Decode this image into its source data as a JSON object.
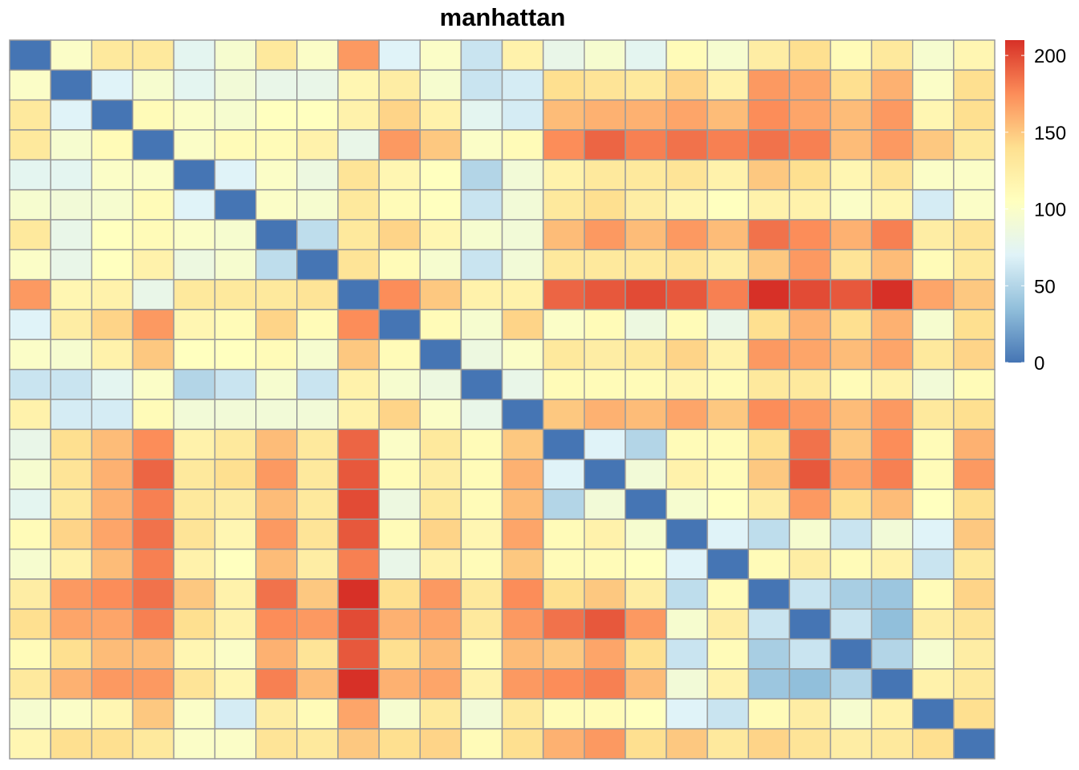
{
  "chart_data": {
    "type": "heatmap",
    "title": "manhattan",
    "rows": 24,
    "cols": 24,
    "color_scale": {
      "min": 0,
      "max": 210,
      "palette": "RdYlBu (reversed)",
      "colors": [
        "#4575b4",
        "#91bfdb",
        "#e0f3f8",
        "#ffffbf",
        "#fee090",
        "#fc8d59",
        "#d73027"
      ]
    },
    "legend": {
      "placement": "right",
      "ticks": [
        "0",
        "50",
        "100",
        "150",
        "200"
      ]
    },
    "matrix": [
      [
        0,
        100,
        130,
        130,
        75,
        95,
        130,
        100,
        170,
        70,
        100,
        60,
        120,
        80,
        95,
        75,
        110,
        95,
        125,
        140,
        110,
        130,
        95,
        115
      ],
      [
        100,
        0,
        70,
        95,
        75,
        90,
        80,
        80,
        115,
        125,
        95,
        60,
        65,
        140,
        135,
        130,
        145,
        120,
        170,
        165,
        140,
        160,
        100,
        140
      ],
      [
        130,
        70,
        0,
        110,
        100,
        95,
        105,
        105,
        120,
        145,
        120,
        75,
        65,
        155,
        160,
        160,
        165,
        155,
        175,
        165,
        155,
        170,
        115,
        140
      ],
      [
        130,
        95,
        110,
        0,
        100,
        110,
        110,
        120,
        80,
        170,
        150,
        100,
        110,
        175,
        190,
        180,
        185,
        180,
        185,
        180,
        155,
        170,
        150,
        130
      ],
      [
        75,
        75,
        100,
        100,
        0,
        70,
        100,
        85,
        135,
        115,
        105,
        50,
        90,
        120,
        130,
        130,
        135,
        120,
        150,
        140,
        115,
        135,
        100,
        100
      ],
      [
        95,
        90,
        95,
        110,
        70,
        0,
        100,
        95,
        130,
        110,
        105,
        60,
        90,
        130,
        140,
        125,
        115,
        105,
        120,
        120,
        100,
        115,
        65,
        100
      ],
      [
        130,
        80,
        105,
        110,
        100,
        95,
        0,
        55,
        130,
        145,
        115,
        95,
        90,
        155,
        170,
        155,
        170,
        155,
        185,
        175,
        160,
        180,
        125,
        135
      ],
      [
        100,
        80,
        105,
        120,
        85,
        95,
        55,
        0,
        135,
        110,
        95,
        60,
        90,
        130,
        130,
        130,
        135,
        125,
        150,
        170,
        135,
        155,
        110,
        130
      ],
      [
        170,
        115,
        120,
        80,
        130,
        130,
        130,
        135,
        0,
        175,
        150,
        120,
        120,
        190,
        195,
        200,
        195,
        180,
        210,
        200,
        195,
        210,
        165,
        150
      ],
      [
        70,
        125,
        145,
        170,
        115,
        110,
        145,
        110,
        175,
        0,
        110,
        95,
        145,
        100,
        110,
        85,
        110,
        80,
        140,
        160,
        140,
        160,
        95,
        140
      ],
      [
        100,
        95,
        120,
        150,
        105,
        105,
        110,
        95,
        150,
        110,
        0,
        85,
        100,
        130,
        125,
        130,
        145,
        120,
        170,
        165,
        155,
        165,
        130,
        145
      ],
      [
        60,
        60,
        75,
        100,
        50,
        60,
        95,
        60,
        120,
        95,
        85,
        0,
        80,
        110,
        110,
        110,
        115,
        110,
        130,
        130,
        110,
        120,
        90,
        110
      ],
      [
        120,
        65,
        65,
        110,
        90,
        90,
        90,
        90,
        120,
        145,
        100,
        80,
        0,
        150,
        160,
        155,
        165,
        150,
        175,
        170,
        155,
        170,
        130,
        140
      ],
      [
        80,
        140,
        155,
        175,
        120,
        130,
        155,
        130,
        190,
        100,
        130,
        110,
        150,
        0,
        70,
        50,
        110,
        110,
        140,
        185,
        150,
        175,
        110,
        160
      ],
      [
        95,
        135,
        160,
        190,
        130,
        140,
        170,
        130,
        195,
        110,
        125,
        110,
        160,
        70,
        0,
        90,
        120,
        110,
        150,
        195,
        165,
        180,
        110,
        170
      ],
      [
        75,
        130,
        160,
        180,
        130,
        125,
        155,
        130,
        200,
        85,
        130,
        110,
        155,
        50,
        90,
        0,
        95,
        105,
        125,
        170,
        140,
        155,
        105,
        140
      ],
      [
        110,
        145,
        165,
        185,
        135,
        115,
        170,
        135,
        195,
        110,
        145,
        115,
        165,
        110,
        120,
        95,
        0,
        70,
        55,
        95,
        60,
        90,
        70,
        150
      ],
      [
        95,
        120,
        155,
        180,
        120,
        105,
        155,
        125,
        180,
        80,
        120,
        110,
        150,
        110,
        110,
        105,
        70,
        0,
        110,
        125,
        110,
        120,
        60,
        130
      ],
      [
        125,
        170,
        175,
        185,
        150,
        120,
        185,
        150,
        210,
        140,
        170,
        130,
        175,
        140,
        150,
        125,
        55,
        110,
        0,
        60,
        45,
        40,
        110,
        145
      ],
      [
        140,
        165,
        165,
        180,
        140,
        120,
        175,
        170,
        200,
        160,
        165,
        130,
        170,
        185,
        195,
        170,
        95,
        125,
        60,
        0,
        60,
        35,
        125,
        135
      ],
      [
        110,
        140,
        155,
        155,
        115,
        100,
        160,
        135,
        195,
        140,
        155,
        110,
        155,
        150,
        165,
        140,
        60,
        110,
        45,
        60,
        0,
        50,
        95,
        125
      ],
      [
        130,
        160,
        170,
        170,
        135,
        115,
        180,
        155,
        210,
        160,
        165,
        120,
        170,
        175,
        180,
        155,
        90,
        120,
        40,
        35,
        50,
        0,
        120,
        130
      ],
      [
        95,
        100,
        115,
        150,
        100,
        65,
        125,
        110,
        165,
        95,
        130,
        90,
        130,
        110,
        110,
        105,
        70,
        60,
        110,
        125,
        95,
        120,
        0,
        140
      ],
      [
        115,
        140,
        140,
        130,
        100,
        100,
        135,
        130,
        150,
        140,
        145,
        110,
        140,
        160,
        170,
        140,
        150,
        130,
        145,
        135,
        125,
        130,
        140,
        0
      ]
    ]
  }
}
